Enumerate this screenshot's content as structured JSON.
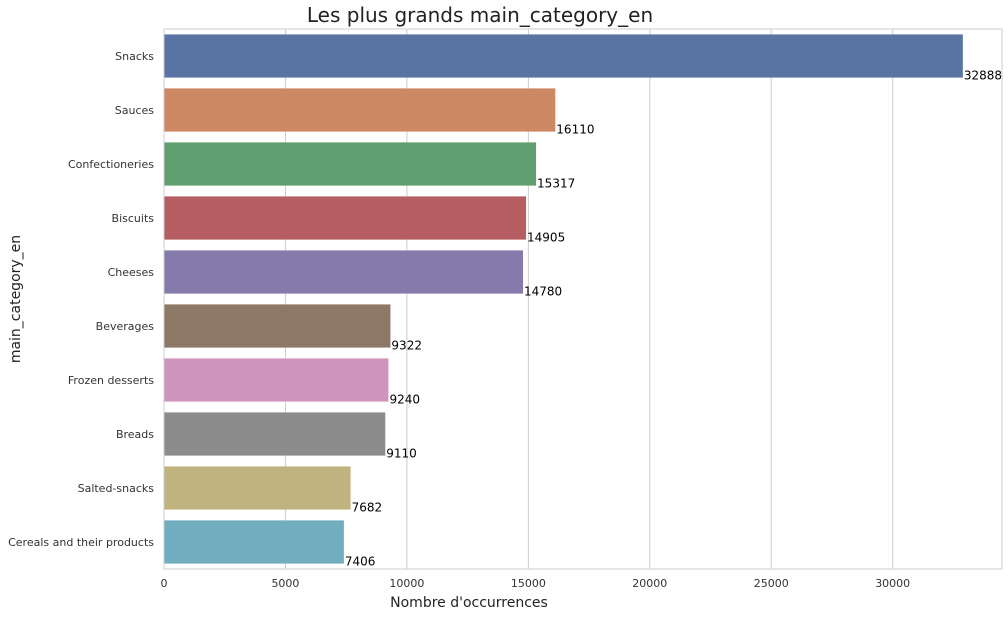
{
  "chart_data": {
    "type": "bar",
    "orientation": "horizontal",
    "title": "Les plus grands main_category_en",
    "xlabel": "Nombre d'occurrences",
    "ylabel": "main_category_en",
    "xlim": [
      0,
      34500
    ],
    "x_ticks": [
      0,
      5000,
      10000,
      15000,
      20000,
      25000,
      30000
    ],
    "grid": "vertical",
    "categories": [
      "Snacks",
      "Sauces",
      "Confectioneries",
      "Biscuits",
      "Cheeses",
      "Beverages",
      "Frozen desserts",
      "Breads",
      "Salted-snacks",
      "Cereals and their products"
    ],
    "values": [
      32888,
      16110,
      15317,
      14905,
      14780,
      9322,
      9240,
      9110,
      7682,
      7406
    ],
    "data_labels": [
      "32888",
      "16110",
      "15317",
      "14905",
      "14780",
      "9322",
      "9240",
      "9110",
      "7682",
      "7406"
    ],
    "colors": [
      "#5975a4",
      "#cc8963",
      "#5f9e6e",
      "#b55d60",
      "#857aab",
      "#8d7866",
      "#d095bf",
      "#8c8c8c",
      "#c1b37f",
      "#71aec0"
    ]
  }
}
